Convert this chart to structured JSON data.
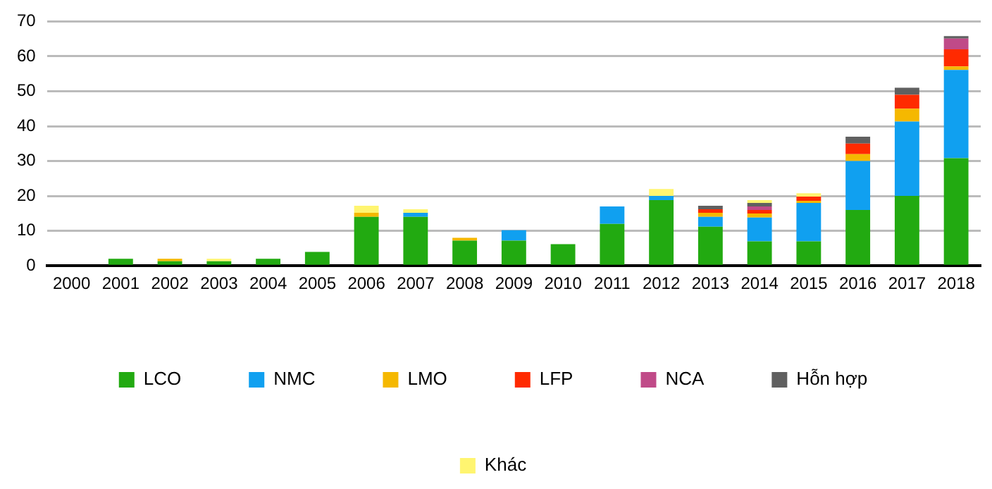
{
  "chart_data": {
    "type": "bar",
    "stacked": true,
    "categories": [
      "2000",
      "2001",
      "2002",
      "2003",
      "2004",
      "2005",
      "2006",
      "2007",
      "2008",
      "2009",
      "2010",
      "2011",
      "2012",
      "2013",
      "2014",
      "2015",
      "2016",
      "2017",
      "2018"
    ],
    "series": [
      {
        "name": "LCO",
        "color": "#22aa11",
        "values": [
          0,
          2,
          1.3,
          1.3,
          2,
          4,
          14,
          14,
          7.2,
          7.2,
          6.2,
          12,
          18.8,
          11.2,
          7,
          7,
          16,
          20,
          30.8
        ]
      },
      {
        "name": "NMC",
        "color": "#10a0f0",
        "values": [
          0,
          0,
          0,
          0,
          0,
          0,
          0,
          1.2,
          0,
          3,
          0,
          5,
          1.2,
          2.8,
          6.8,
          11,
          14,
          21.3,
          25.3
        ]
      },
      {
        "name": "LMO",
        "color": "#f5b800",
        "values": [
          0,
          0,
          0.7,
          0,
          0,
          0,
          1.2,
          0,
          0.8,
          0,
          0,
          0,
          0,
          1.2,
          1.2,
          0.6,
          2,
          3.7,
          1
        ]
      },
      {
        "name": "LFP",
        "color": "#ff2a00",
        "values": [
          0,
          0,
          0,
          0,
          0,
          0,
          0,
          0,
          0,
          0,
          0,
          0,
          0,
          1,
          1,
          1.2,
          3,
          4,
          4.9
        ]
      },
      {
        "name": "NCA",
        "color": "#c04a88",
        "values": [
          0,
          0,
          0,
          0,
          0,
          0,
          0,
          0,
          0,
          0,
          0,
          0,
          0,
          0,
          1,
          0,
          0,
          0,
          3.1
        ]
      },
      {
        "name": "Hỗn hợp",
        "color": "#606060",
        "values": [
          0,
          0,
          0,
          0,
          0,
          0,
          0,
          0,
          0,
          0,
          0,
          0,
          0,
          1,
          1,
          0,
          2,
          2,
          0.7
        ]
      },
      {
        "name": "Khác",
        "color": "#fff570",
        "values": [
          0,
          0,
          0,
          0.7,
          0,
          0,
          2,
          1,
          0,
          0,
          0,
          0,
          2,
          0,
          0.8,
          1,
          0,
          0,
          0
        ]
      }
    ],
    "ylim": [
      0,
      70
    ],
    "yticks": [
      0,
      10,
      20,
      30,
      40,
      50,
      60,
      70
    ],
    "grid": "y",
    "legend": "bottom"
  }
}
